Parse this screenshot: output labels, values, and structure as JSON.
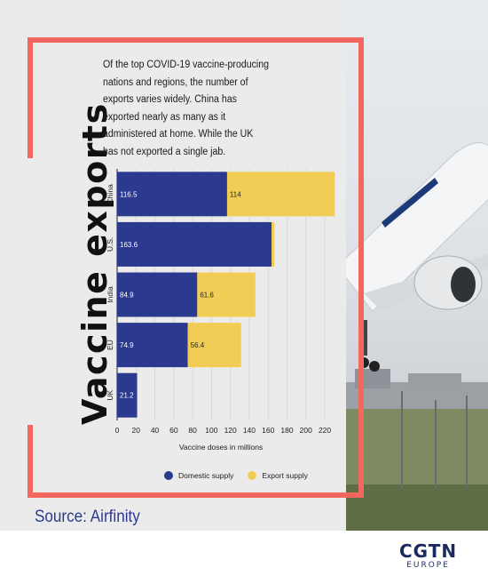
{
  "title": "Vaccine exports",
  "subtitle": "Of the top COVID-19 vaccine-producing nations and regions, the number of exports varies widely. China has exported nearly as many as it administered at home. While the UK has not exported a single jab.",
  "source": "Source: Airfinity",
  "logo": {
    "main": "CGTN",
    "sub": "EUROPE"
  },
  "colors": {
    "domestic": "#2b3a8f",
    "export": "#f2cd55",
    "frame": "#f4675f"
  },
  "chart_data": {
    "type": "bar",
    "orientation": "horizontal",
    "stacked": true,
    "categories": [
      "China",
      "U.S.",
      "India",
      "EU",
      "UK"
    ],
    "series": [
      {
        "name": "Domestic supply",
        "values": [
          116.5,
          163.6,
          84.9,
          74.9,
          21.2
        ],
        "labels": [
          "116.5",
          "163.6",
          "84.9",
          "74.9",
          "21.2"
        ]
      },
      {
        "name": "Export supply",
        "values": [
          114,
          3,
          61.6,
          56.4,
          0
        ],
        "labels": [
          "114",
          "",
          "61.6",
          "56.4",
          ""
        ]
      }
    ],
    "xlabel": "Vaccine doses in millions",
    "xticks": [
      0,
      20,
      40,
      60,
      80,
      100,
      120,
      140,
      160,
      180,
      200,
      220
    ],
    "xlim": [
      0,
      235
    ],
    "grid": true,
    "legend": "bottom"
  }
}
